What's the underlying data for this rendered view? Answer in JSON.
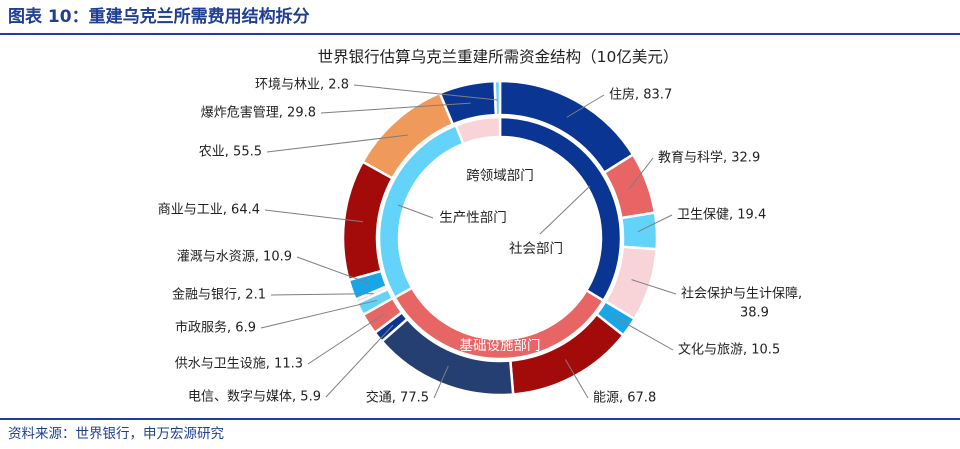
{
  "figure": {
    "title": "图表 10：重建乌克兰所需费用结构拆分",
    "source": "资料来源：世界银行，申万宏源研究"
  },
  "chart_data": {
    "type": "pie",
    "style": "nested-donut",
    "title": "世界银行估算乌克兰重建所需资金结构（10亿美元）",
    "unit": "10亿美元",
    "inner_ring": [
      {
        "name": "社会部门",
        "value": 185.2,
        "color": "#0b3593"
      },
      {
        "name": "基础设施部门",
        "value": 182.3,
        "color": "#e86565"
      },
      {
        "name": "生产性部门",
        "value": 150.0,
        "color": "#64d3fa"
      },
      {
        "name": "跨领域部门",
        "value": 32.6,
        "color": "#f8d3d8"
      }
    ],
    "outer_ring": [
      {
        "name": "住房",
        "value": 83.7,
        "label": "住房, 83.7",
        "color": "#0b3593"
      },
      {
        "name": "教育与科学",
        "value": 32.9,
        "label": "教育与科学, 32.9",
        "color": "#e86565"
      },
      {
        "name": "卫生保健",
        "value": 19.4,
        "label": "卫生保健, 19.4",
        "color": "#64d3fa"
      },
      {
        "name": "社会保护与生计保障",
        "value": 38.9,
        "label": "社会保护与生计保障,",
        "label2": "38.9",
        "color": "#f8d3d8"
      },
      {
        "name": "文化与旅游",
        "value": 10.5,
        "label": "文化与旅游, 10.5",
        "color": "#1aa6e6"
      },
      {
        "name": "能源",
        "value": 67.8,
        "label": "能源, 67.8",
        "color": "#a30a0a"
      },
      {
        "name": "交通",
        "value": 77.5,
        "label": "交通, 77.5",
        "color": "#263f72"
      },
      {
        "name": "电信、数字与媒体",
        "value": 5.9,
        "label": "电信、数字与媒体, 5.9",
        "color": "#0b3593"
      },
      {
        "name": "供水与卫生设施",
        "value": 11.3,
        "label": "供水与卫生设施, 11.3",
        "color": "#e86565"
      },
      {
        "name": "市政服务",
        "value": 6.9,
        "label": "市政服务, 6.9",
        "color": "#64d3fa"
      },
      {
        "name": "金融与银行",
        "value": 2.1,
        "label": "金融与银行, 2.1",
        "color": "#f8d3d8"
      },
      {
        "name": "灌溉与水资源",
        "value": 10.9,
        "label": "灌溉与水资源, 10.9",
        "color": "#1aa6e6"
      },
      {
        "name": "商业与工业",
        "value": 64.4,
        "label": "商业与工业, 64.4",
        "color": "#a30a0a"
      },
      {
        "name": "农业",
        "value": 55.5,
        "label": "农业, 55.5",
        "color": "#ef9a5a"
      },
      {
        "name": "爆炸危害管理",
        "value": 29.8,
        "label": "爆炸危害管理, 29.8",
        "color": "#0b3593"
      },
      {
        "name": "环境与林业",
        "value": 2.8,
        "label": "环境与林业, 2.8",
        "color": "#64d3fa"
      }
    ]
  }
}
